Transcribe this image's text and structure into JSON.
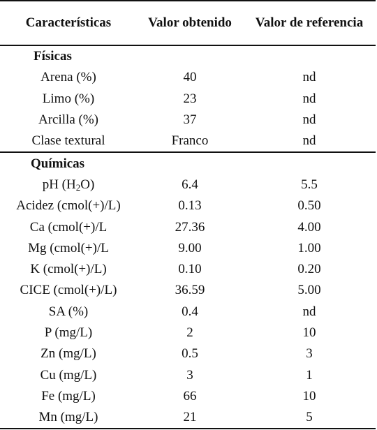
{
  "table": {
    "headers": [
      "Características",
      "Valor obtenido",
      "Valor de referencia"
    ],
    "sections": [
      {
        "title": "Físicas",
        "rows": [
          {
            "label": "Arena (%)",
            "obtenido": "40",
            "referencia": "nd"
          },
          {
            "label": "Limo (%)",
            "obtenido": "23",
            "referencia": "nd"
          },
          {
            "label": "Arcilla (%)",
            "obtenido": "37",
            "referencia": "nd"
          },
          {
            "label": "Clase textural",
            "obtenido": "Franco",
            "referencia": "nd"
          }
        ]
      },
      {
        "title": "Químicas",
        "rows": [
          {
            "label_pre": "pH (H",
            "label_sub": "2",
            "label_post": "O)",
            "obtenido": "6.4",
            "referencia": "5.5"
          },
          {
            "label": "Acidez (cmol(+)/L)",
            "obtenido": "0.13",
            "referencia": "0.50"
          },
          {
            "label": "Ca (cmol(+)/L",
            "obtenido": "27.36",
            "referencia": "4.00"
          },
          {
            "label": "Mg (cmol(+)/L",
            "obtenido": "9.00",
            "referencia": "1.00"
          },
          {
            "label": "K (cmol(+)/L)",
            "obtenido": "0.10",
            "referencia": "0.20"
          },
          {
            "label": "CICE (cmol(+)/L)",
            "obtenido": "36.59",
            "referencia": "5.00"
          },
          {
            "label": "SA (%)",
            "obtenido": "0.4",
            "referencia": "nd"
          },
          {
            "label": "P (mg/L)",
            "obtenido": "2",
            "referencia": "10"
          },
          {
            "label": "Zn (mg/L)",
            "obtenido": "0.5",
            "referencia": "3"
          },
          {
            "label": "Cu (mg/L)",
            "obtenido": "3",
            "referencia": "1"
          },
          {
            "label": "Fe (mg/L)",
            "obtenido": "66",
            "referencia": "10"
          },
          {
            "label": "Mn (mg/L)",
            "obtenido": "21",
            "referencia": "5"
          }
        ]
      }
    ]
  }
}
